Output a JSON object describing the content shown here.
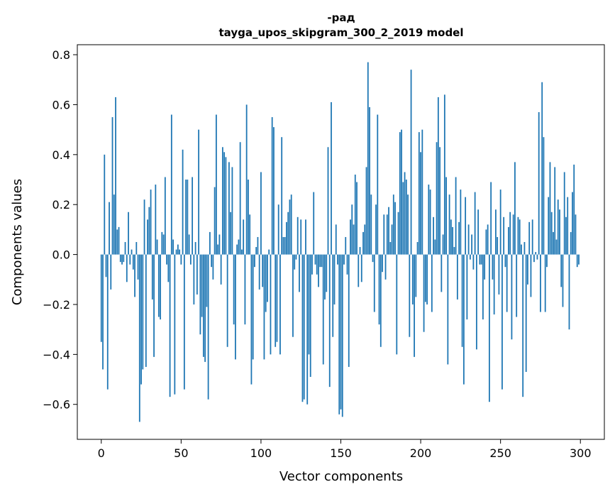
{
  "chart_data": {
    "type": "bar",
    "title": "-рад",
    "subtitle": "tayga_upos_skipgram_300_2_2019 model",
    "xlabel": "Vector components",
    "ylabel": "Components values",
    "xlim": [
      -15,
      315
    ],
    "ylim": [
      -0.74,
      0.84
    ],
    "xticks": [
      0,
      50,
      100,
      150,
      200,
      250,
      300
    ],
    "xtick_labels": [
      "0",
      "50",
      "100",
      "150",
      "200",
      "250",
      "300"
    ],
    "yticks": [
      -0.6,
      -0.4,
      -0.2,
      0.0,
      0.2,
      0.4,
      0.6,
      0.8
    ],
    "ytick_labels": [
      "−0.6",
      "−0.4",
      "−0.2",
      "0.0",
      "0.2",
      "0.4",
      "0.6",
      "0.8"
    ],
    "grid": false,
    "bar_color": "#1f77b4",
    "series": [
      {
        "x_start": 0,
        "values": [
          -0.35,
          -0.46,
          0.4,
          -0.09,
          -0.54,
          0.21,
          -0.14,
          0.55,
          0.24,
          0.63,
          0.1,
          0.11,
          -0.03,
          -0.04,
          -0.03,
          0.05,
          -0.11,
          0.17,
          -0.04,
          0.02,
          -0.06,
          -0.17,
          0.05,
          -0.1,
          -0.67,
          -0.52,
          -0.46,
          0.22,
          -0.45,
          0.14,
          0.19,
          0.26,
          -0.18,
          -0.41,
          0.28,
          0.06,
          -0.25,
          -0.26,
          0.09,
          0.08,
          0.31,
          -0.04,
          -0.11,
          -0.57,
          0.56,
          0.06,
          -0.56,
          0.02,
          0.04,
          0.02,
          -0.04,
          0.42,
          -0.54,
          0.3,
          0.3,
          0.08,
          -0.04,
          0.31,
          -0.2,
          0.05,
          -0.16,
          0.5,
          -0.32,
          -0.25,
          -0.41,
          -0.43,
          -0.21,
          -0.58,
          0.09,
          -0.05,
          -0.1,
          0.27,
          0.56,
          0.04,
          0.08,
          -0.12,
          0.43,
          0.41,
          0.39,
          -0.37,
          0.37,
          0.17,
          0.35,
          -0.28,
          -0.42,
          0.04,
          0.06,
          0.45,
          0.02,
          0.14,
          -0.28,
          0.6,
          0.3,
          0.16,
          -0.52,
          -0.42,
          -0.05,
          0.03,
          0.07,
          -0.14,
          0.33,
          -0.13,
          -0.42,
          -0.23,
          -0.19,
          0.02,
          -0.4,
          0.55,
          0.51,
          -0.37,
          -0.35,
          0.2,
          -0.4,
          0.47,
          0.07,
          0.07,
          0.13,
          0.17,
          0.22,
          0.24,
          -0.33,
          -0.06,
          -0.02,
          0.15,
          -0.15,
          0.14,
          -0.59,
          -0.58,
          0.14,
          -0.6,
          -0.4,
          -0.49,
          -0.08,
          0.25,
          -0.04,
          -0.08,
          -0.13,
          -0.05,
          -0.05,
          -0.44,
          -0.18,
          -0.15,
          0.43,
          -0.53,
          0.61,
          -0.33,
          -0.2,
          0.12,
          -0.04,
          -0.64,
          -0.62,
          -0.65,
          -0.04,
          0.07,
          -0.08,
          -0.45,
          0.14,
          0.2,
          0.12,
          0.32,
          0.29,
          -0.13,
          0.03,
          -0.11,
          0.09,
          0.12,
          0.35,
          0.77,
          0.59,
          0.24,
          -0.03,
          -0.23,
          0.2,
          0.56,
          -0.28,
          -0.37,
          -0.07,
          0.16,
          -0.1,
          0.16,
          0.19,
          0.05,
          0.12,
          0.24,
          0.21,
          -0.4,
          0.17,
          0.49,
          0.5,
          0.29,
          0.33,
          0.3,
          0.24,
          -0.33,
          0.74,
          -0.2,
          -0.41,
          -0.17,
          0.05,
          0.49,
          0.41,
          0.5,
          -0.31,
          -0.19,
          -0.2,
          0.28,
          0.26,
          -0.23,
          0.15,
          0.06,
          0.45,
          0.63,
          0.43,
          -0.15,
          0.08,
          0.64,
          0.31,
          -0.44,
          0.24,
          0.14,
          0.11,
          0.03,
          0.31,
          -0.18,
          0.13,
          0.26,
          -0.37,
          -0.52,
          0.23,
          -0.26,
          0.12,
          -0.02,
          0.08,
          -0.06,
          0.25,
          -0.38,
          0.18,
          -0.04,
          -0.04,
          -0.26,
          -0.1,
          0.1,
          0.12,
          -0.59,
          0.29,
          -0.1,
          -0.24,
          0.18,
          0.07,
          -0.16,
          0.26,
          -0.54,
          0.15,
          -0.05,
          -0.23,
          0.11,
          0.17,
          -0.34,
          0.16,
          0.37,
          -0.25,
          0.15,
          0.14,
          0.04,
          -0.57,
          0.05,
          -0.47,
          -0.12,
          0.13,
          -0.17,
          0.14,
          -0.03,
          0.01,
          -0.02,
          0.57,
          -0.23,
          0.69,
          0.47,
          -0.23,
          -0.05,
          0.23,
          0.37,
          0.17,
          0.09,
          0.35,
          0.06,
          0.22,
          0.18,
          -0.13,
          -0.21,
          0.33,
          0.15,
          0.23,
          -0.3,
          0.09,
          0.25,
          0.36,
          0.16,
          -0.05,
          -0.04
        ]
      }
    ]
  }
}
